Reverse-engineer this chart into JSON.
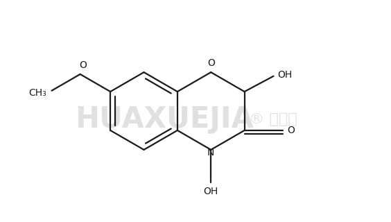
{
  "bg_color": "#ffffff",
  "line_color": "#1a1a1a",
  "line_width": 1.6,
  "watermark_text": "HUAXUEJIA",
  "watermark_color": "#e0e0e0",
  "watermark_fontsize": 30,
  "label_fontsize": 10,
  "label_color": "#1a1a1a",
  "fig_width": 5.64,
  "fig_height": 3.2,
  "dpi": 100,
  "xlim": [
    -3.5,
    4.0
  ],
  "ylim": [
    -2.0,
    2.0
  ]
}
